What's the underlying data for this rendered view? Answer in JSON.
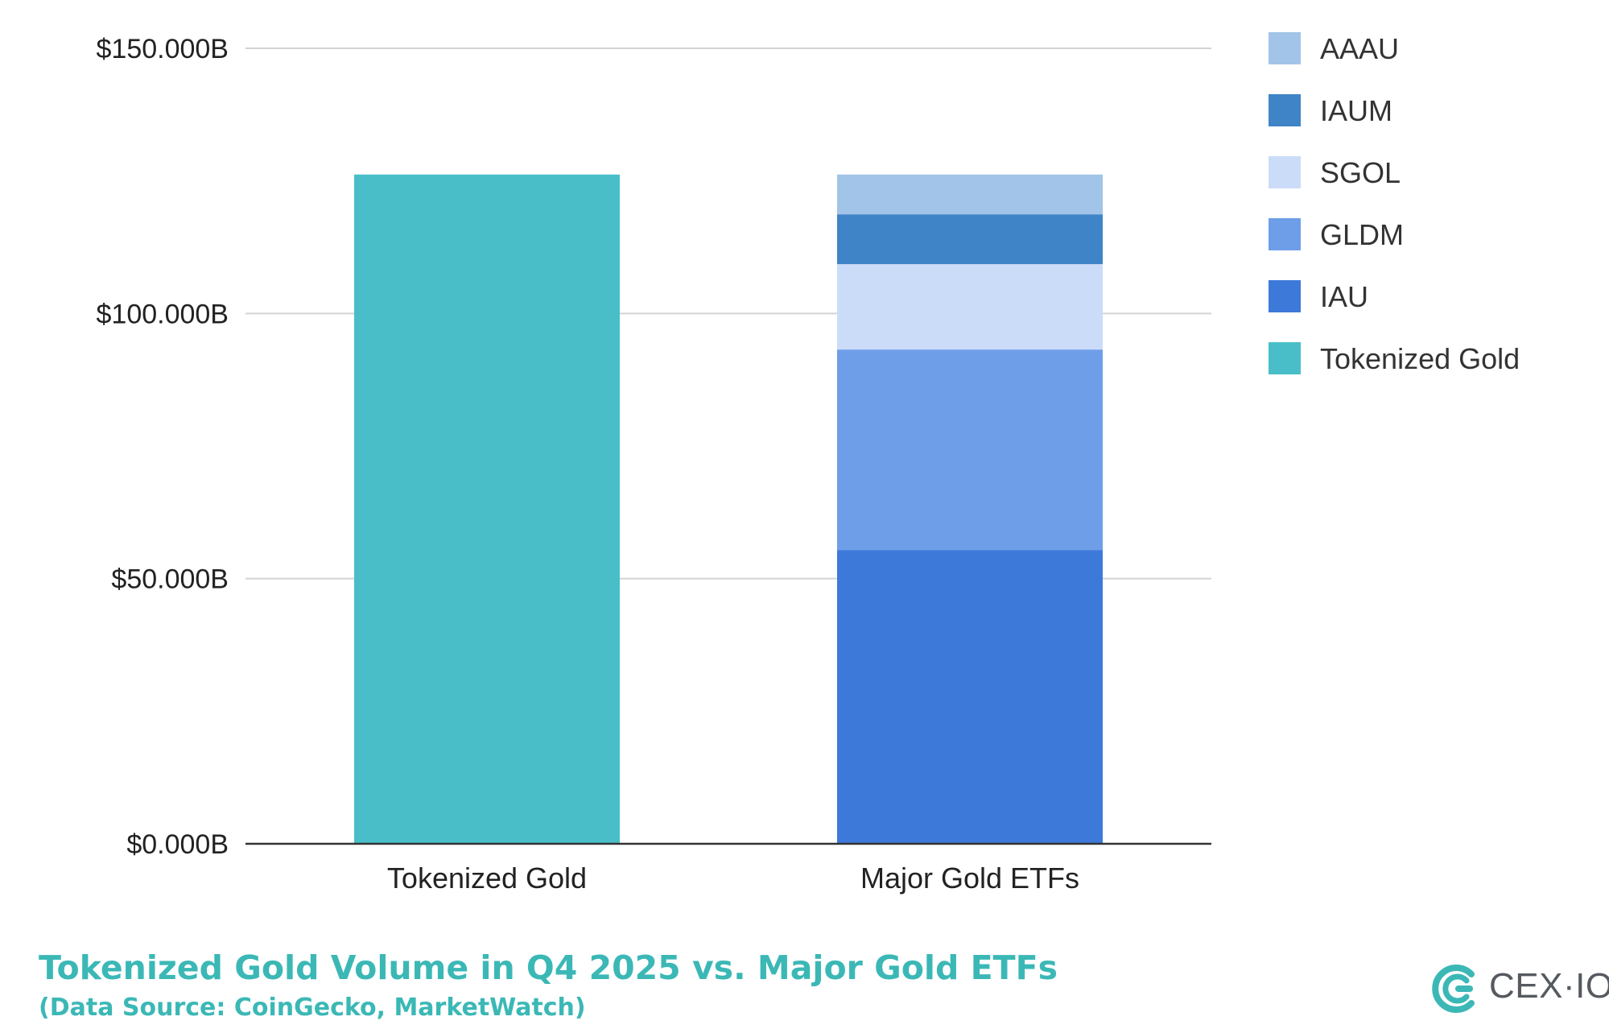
{
  "chart_data": {
    "type": "bar",
    "stacked": true,
    "categories": [
      "Tokenized Gold",
      "Major Gold ETFs"
    ],
    "series": [
      {
        "name": "Tokenized Gold",
        "color": "#49bec8",
        "values": [
          126.2,
          0
        ]
      },
      {
        "name": "IAU",
        "color": "#3d79d9",
        "values": [
          0,
          55.4
        ]
      },
      {
        "name": "GLDM",
        "color": "#6f9ee9",
        "values": [
          0,
          37.8
        ]
      },
      {
        "name": "SGOL",
        "color": "#cbdcf8",
        "values": [
          0,
          16.1
        ]
      },
      {
        "name": "IAUM",
        "color": "#3f84c6",
        "values": [
          0,
          9.4
        ]
      },
      {
        "name": "AAAU",
        "color": "#a2c4e8",
        "values": [
          0,
          7.5
        ]
      }
    ],
    "legend_order": [
      "AAAU",
      "IAUM",
      "SGOL",
      "GLDM",
      "IAU",
      "Tokenized Gold"
    ],
    "legend_position": "right",
    "ylim": [
      0,
      150
    ],
    "yticks": [
      0,
      50,
      100,
      150
    ],
    "ytick_labels": [
      "$0.000B",
      "$50.000B",
      "$100.000B",
      "$150.000B"
    ],
    "grid": true,
    "xlabel": "",
    "ylabel": ""
  },
  "footer": {
    "title": "Tokenized Gold Volume in Q4 2025 vs. Major Gold ETFs",
    "subtitle": "(Data Source: CoinGecko, MarketWatch)"
  },
  "brand": {
    "name": "CEX·IO",
    "color": "#3bb8b6"
  }
}
